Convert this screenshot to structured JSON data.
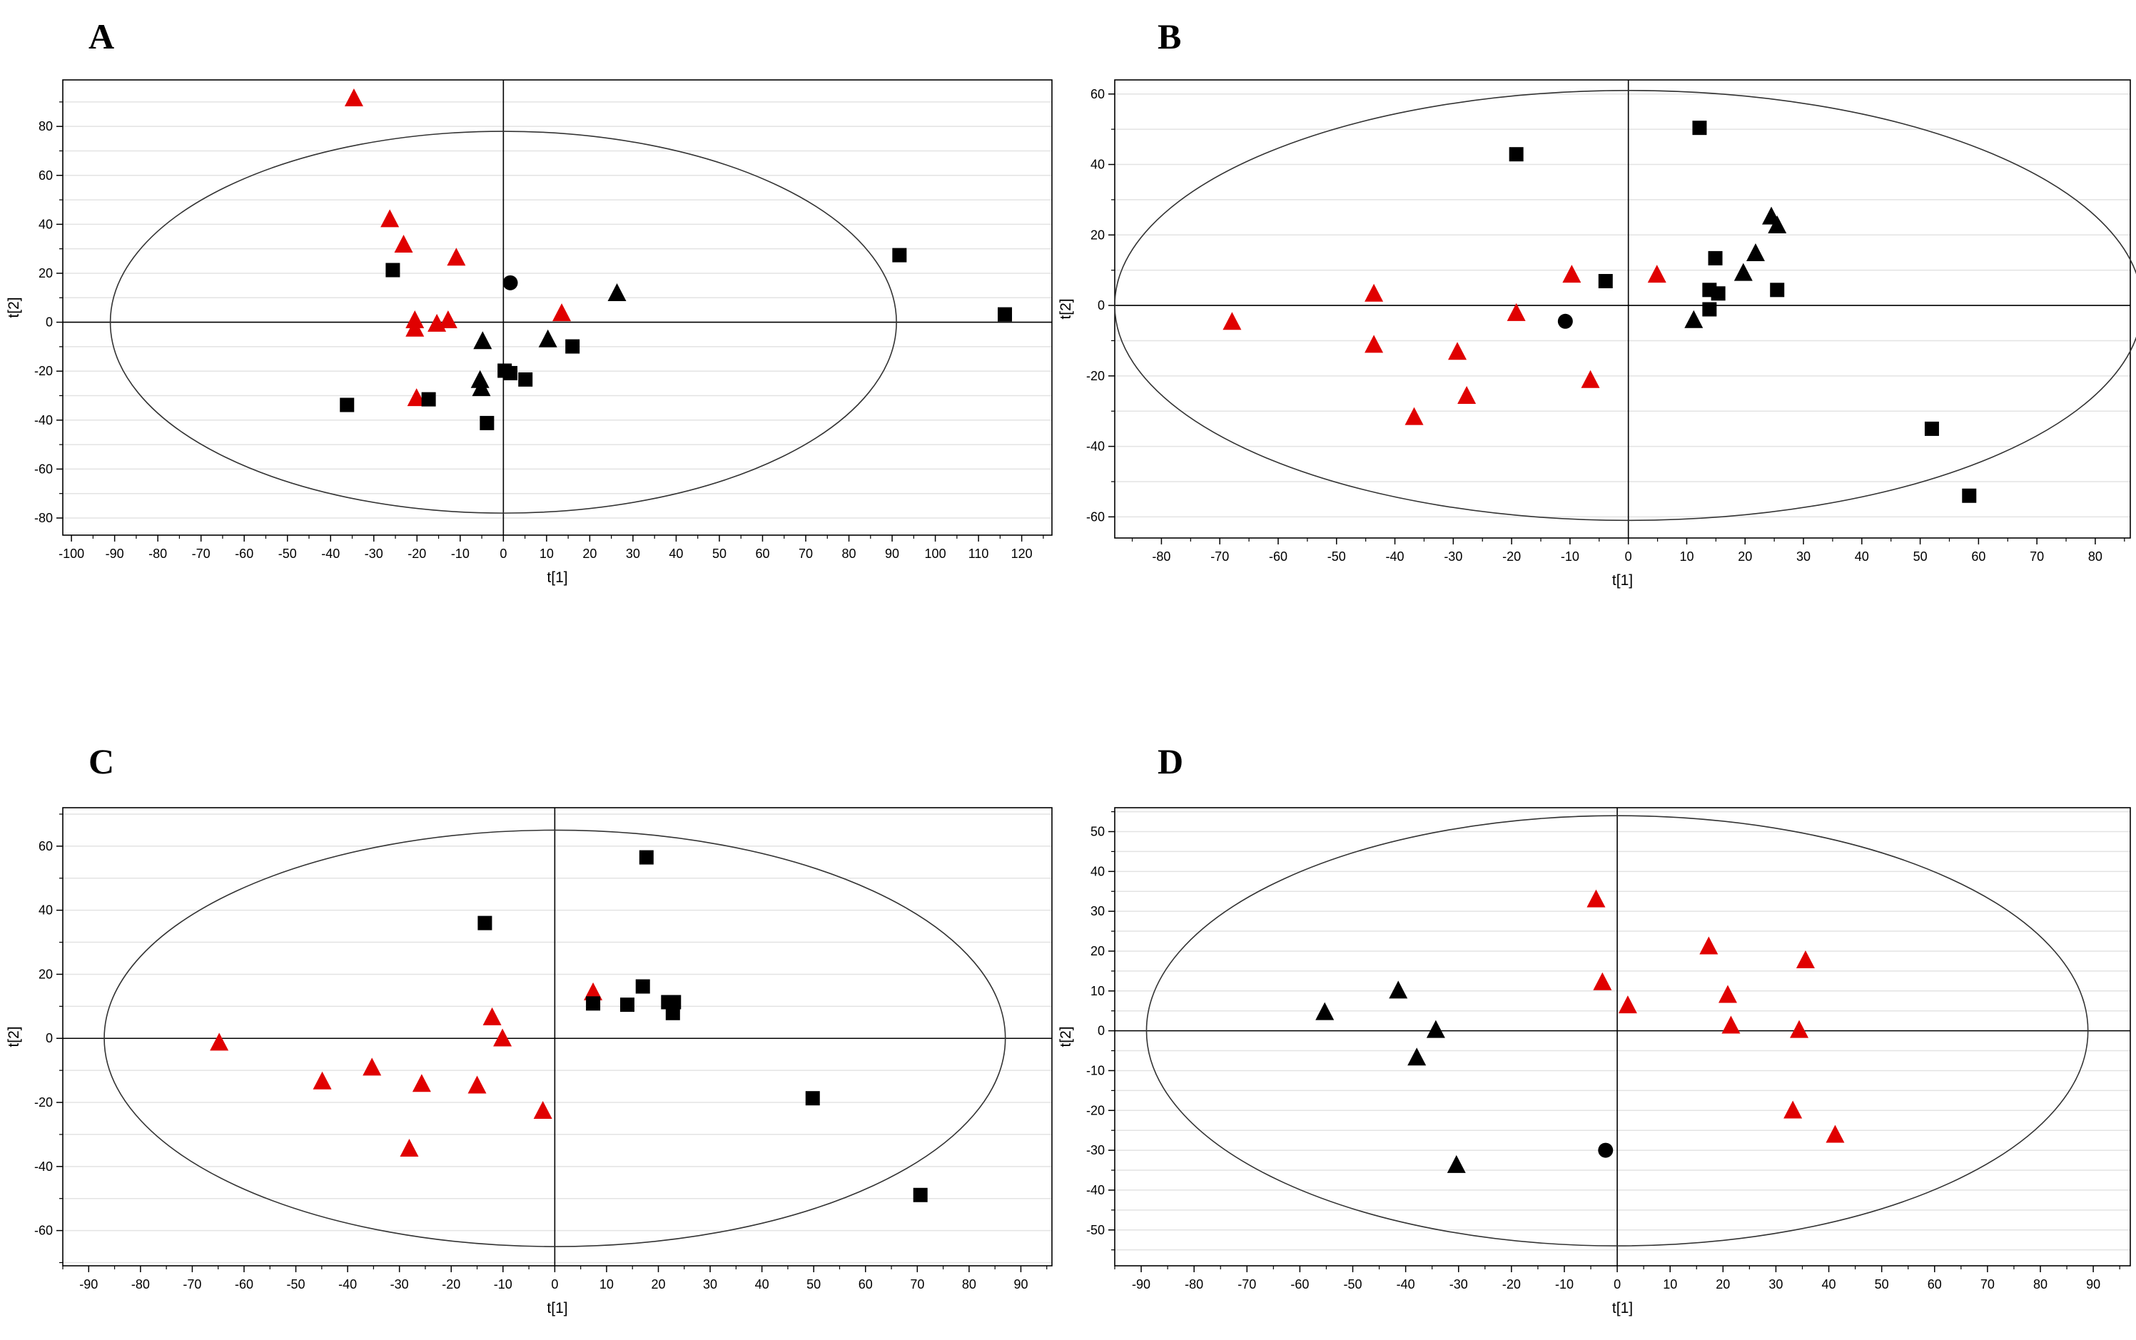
{
  "chart_data": [
    {
      "panel": "A",
      "type": "scatter",
      "xlabel": "t[1]",
      "ylabel": "t[2]",
      "xlim": [
        -102,
        127
      ],
      "ylim": [
        -87,
        99
      ],
      "xticks": [
        "-100",
        "-90",
        "-80",
        "-70",
        "-60",
        "-50",
        "-40",
        "-30",
        "-20",
        "-10",
        "0",
        "10",
        "20",
        "30",
        "40",
        "50",
        "60",
        "70",
        "80",
        "90",
        "100",
        "110",
        "120"
      ],
      "yticks": [
        "-80",
        "-60",
        "-40",
        "-20",
        "0",
        "20",
        "40",
        "60",
        "80"
      ],
      "ellipse": {
        "rx": 91,
        "ry": 78
      },
      "grid": "horizontal",
      "series": [
        {
          "name": "red-triangle",
          "marker": "triangle",
          "color": "#e00000",
          "points": [
            [
              -34.6,
              91
            ],
            [
              -26.3,
              41.6
            ],
            [
              -23.1,
              31.2
            ],
            [
              -10.9,
              25.9
            ],
            [
              -20.5,
              0.3
            ],
            [
              -20.5,
              -3.1
            ],
            [
              -15.4,
              -1.1
            ],
            [
              -12.8,
              0.3
            ],
            [
              13.5,
              3.2
            ],
            [
              -20.1,
              -31.5
            ]
          ]
        },
        {
          "name": "black-triangle",
          "marker": "triangle",
          "color": "#000000",
          "points": [
            [
              26.3,
              11.4
            ],
            [
              -4.8,
              -8.2
            ],
            [
              10.3,
              -7.5
            ],
            [
              -5.4,
              -24.1
            ],
            [
              -5.1,
              -27.4
            ]
          ]
        },
        {
          "name": "black-square",
          "marker": "square",
          "color": "#000000",
          "points": [
            [
              -25.6,
              21.3
            ],
            [
              91.7,
              27.4
            ],
            [
              116.1,
              3.2
            ],
            [
              -36.2,
              -33.8
            ],
            [
              -17.3,
              -31.5
            ],
            [
              -3.8,
              -41.2
            ],
            [
              0.3,
              -19.8
            ],
            [
              1.6,
              -20.8
            ],
            [
              5.1,
              -23.4
            ],
            [
              16.0,
              -9.9
            ]
          ]
        },
        {
          "name": "black-circle",
          "marker": "circle",
          "color": "#000000",
          "points": [
            [
              1.6,
              16.1
            ]
          ]
        }
      ]
    },
    {
      "panel": "B",
      "type": "scatter",
      "xlabel": "t[1]",
      "ylabel": "t[2]",
      "xlim": [
        -88,
        86
      ],
      "ylim": [
        -66,
        64
      ],
      "xticks": [
        "-80",
        "-70",
        "-60",
        "-50",
        "-40",
        "-30",
        "-20",
        "-10",
        "0",
        "10",
        "20",
        "30",
        "40",
        "50",
        "60",
        "70",
        "80"
      ],
      "yticks": [
        "-60",
        "-40",
        "-20",
        "0",
        "20",
        "40",
        "60"
      ],
      "ellipse": {
        "rx": 88,
        "ry": 61
      },
      "grid": "horizontal",
      "series": [
        {
          "name": "red-triangle",
          "marker": "triangle",
          "color": "#e00000",
          "points": [
            [
              -67.9,
              -5.0
            ],
            [
              -43.6,
              3.0
            ],
            [
              -43.6,
              -11.5
            ],
            [
              -36.7,
              -32.0
            ],
            [
              -29.3,
              -13.5
            ],
            [
              -27.7,
              -26.0
            ],
            [
              -19.2,
              -2.5
            ],
            [
              -9.7,
              8.4
            ],
            [
              -6.5,
              -21.5
            ],
            [
              4.9,
              8.4
            ]
          ]
        },
        {
          "name": "black-triangle",
          "marker": "triangle",
          "color": "#000000",
          "points": [
            [
              11.2,
              -4.5
            ],
            [
              19.7,
              8.9
            ],
            [
              21.8,
              14.5
            ],
            [
              24.5,
              24.9
            ],
            [
              25.5,
              22.4
            ]
          ]
        },
        {
          "name": "black-square",
          "marker": "square",
          "color": "#000000",
          "points": [
            [
              12.2,
              50.4
            ],
            [
              -19.2,
              42.9
            ],
            [
              -3.9,
              6.9
            ],
            [
              14.9,
              13.4
            ],
            [
              13.9,
              4.4
            ],
            [
              15.4,
              3.4
            ],
            [
              13.9,
              -1.1
            ],
            [
              25.5,
              4.4
            ],
            [
              52.0,
              -35.0
            ],
            [
              58.4,
              -54.0
            ]
          ]
        },
        {
          "name": "black-circle",
          "marker": "circle",
          "color": "#000000",
          "points": [
            [
              -10.8,
              -4.5
            ]
          ]
        }
      ]
    },
    {
      "panel": "C",
      "type": "scatter",
      "xlabel": "t[1]",
      "ylabel": "t[2]",
      "xlim": [
        -95,
        96
      ],
      "ylim": [
        -71,
        72
      ],
      "xticks": [
        "-90",
        "-80",
        "-70",
        "-60",
        "-50",
        "-40",
        "-30",
        "-20",
        "-10",
        "0",
        "10",
        "20",
        "30",
        "40",
        "50",
        "60",
        "70",
        "80",
        "90"
      ],
      "yticks": [
        "-60",
        "-40",
        "-20",
        "0",
        "20",
        "40",
        "60"
      ],
      "ellipse": {
        "rx": 87,
        "ry": 65
      },
      "grid": "horizontal",
      "series": [
        {
          "name": "red-triangle",
          "marker": "triangle",
          "color": "#e00000",
          "points": [
            [
              -64.8,
              -1.7
            ],
            [
              -44.9,
              -13.8
            ],
            [
              -35.3,
              -9.5
            ],
            [
              -25.7,
              -14.6
            ],
            [
              -28.1,
              -34.8
            ],
            [
              -15.0,
              -15.1
            ],
            [
              -12.1,
              6.2
            ],
            [
              -10.1,
              -0.4
            ],
            [
              -2.3,
              -23.0
            ],
            [
              7.4,
              14.0
            ]
          ]
        },
        {
          "name": "black-square",
          "marker": "square",
          "color": "#000000",
          "points": [
            [
              17.7,
              56.5
            ],
            [
              -13.5,
              36.0
            ],
            [
              17.0,
              16.2
            ],
            [
              7.4,
              10.9
            ],
            [
              14.0,
              10.5
            ],
            [
              21.9,
              11.3
            ],
            [
              23.0,
              11.3
            ],
            [
              22.8,
              7.9
            ],
            [
              49.8,
              -18.7
            ],
            [
              70.6,
              -48.9
            ]
          ]
        }
      ]
    },
    {
      "panel": "D",
      "type": "scatter",
      "xlabel": "t[1]",
      "ylabel": "t[2]",
      "xlim": [
        -95,
        97
      ],
      "ylim": [
        -59,
        56
      ],
      "xticks": [
        "-90",
        "-80",
        "-70",
        "-60",
        "-50",
        "-40",
        "-30",
        "-20",
        "-10",
        "0",
        "10",
        "20",
        "30",
        "40",
        "50",
        "60",
        "70",
        "80",
        "90"
      ],
      "yticks": [
        "-50",
        "-40",
        "-30",
        "-20",
        "-10",
        "0",
        "10",
        "20",
        "30",
        "40",
        "50"
      ],
      "ellipse": {
        "rx": 89,
        "ry": 54
      },
      "grid": "horizontal",
      "series": [
        {
          "name": "red-triangle",
          "marker": "triangle",
          "color": "#e00000",
          "points": [
            [
              -4.0,
              32.7
            ],
            [
              -2.8,
              11.9
            ],
            [
              2.0,
              6.1
            ],
            [
              17.3,
              20.9
            ],
            [
              20.9,
              8.7
            ],
            [
              21.5,
              1.0
            ],
            [
              35.6,
              17.4
            ],
            [
              34.4,
              -0.1
            ],
            [
              33.2,
              -20.3
            ],
            [
              41.2,
              -26.4
            ]
          ]
        },
        {
          "name": "black-triangle",
          "marker": "triangle",
          "color": "#000000",
          "points": [
            [
              -55.3,
              4.4
            ],
            [
              -41.4,
              9.8
            ],
            [
              -34.3,
              -0.1
            ],
            [
              -37.9,
              -7.0
            ],
            [
              -30.4,
              -34.0
            ]
          ]
        },
        {
          "name": "black-circle",
          "marker": "circle",
          "color": "#000000",
          "points": [
            [
              -2.2,
              -30.0
            ]
          ]
        }
      ]
    }
  ]
}
